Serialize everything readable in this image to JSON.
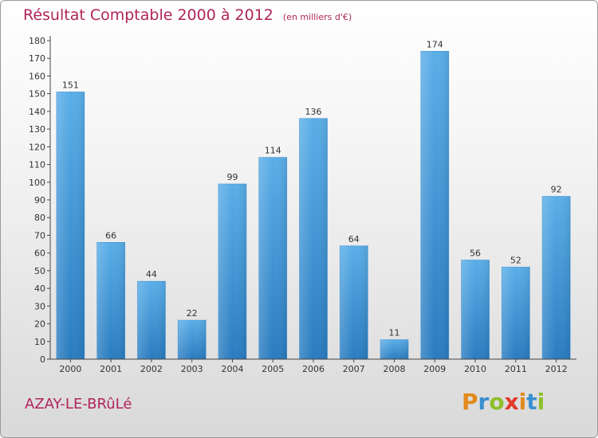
{
  "header": {
    "title": "Résultat Comptable 2000 à 2012",
    "subtitle": "(en milliers d'€)"
  },
  "footer": {
    "city": "AZAY-LE-BRûLé",
    "logo_letters": [
      "P",
      "r",
      "o",
      "x",
      "i",
      "t",
      "i"
    ],
    "logo_colors": [
      "#e2891c",
      "#3a8fd0",
      "#8fbf2a",
      "#e23a2a",
      "#e2891c",
      "#3a8fd0",
      "#8fbf2a"
    ]
  },
  "colors": {
    "bar_top": "#5aaee8",
    "bar_bottom": "#2a7cc0",
    "axis": "#444444",
    "grid": "#dddddd"
  },
  "chart_data": {
    "type": "bar",
    "title": "Résultat Comptable 2000 à 2012",
    "subtitle": "(en milliers d'€)",
    "categories": [
      "2000",
      "2001",
      "2002",
      "2003",
      "2004",
      "2005",
      "2006",
      "2007",
      "2008",
      "2009",
      "2010",
      "2011",
      "2012"
    ],
    "values": [
      151,
      66,
      44,
      22,
      99,
      114,
      136,
      64,
      11,
      174,
      56,
      52,
      92
    ],
    "ylim": [
      0,
      180
    ],
    "yticks": [
      0,
      10,
      20,
      30,
      40,
      50,
      60,
      70,
      80,
      90,
      100,
      110,
      120,
      130,
      140,
      150,
      160,
      170,
      180
    ],
    "xlabel": "",
    "ylabel": "",
    "grid": false,
    "data_labels": true
  }
}
